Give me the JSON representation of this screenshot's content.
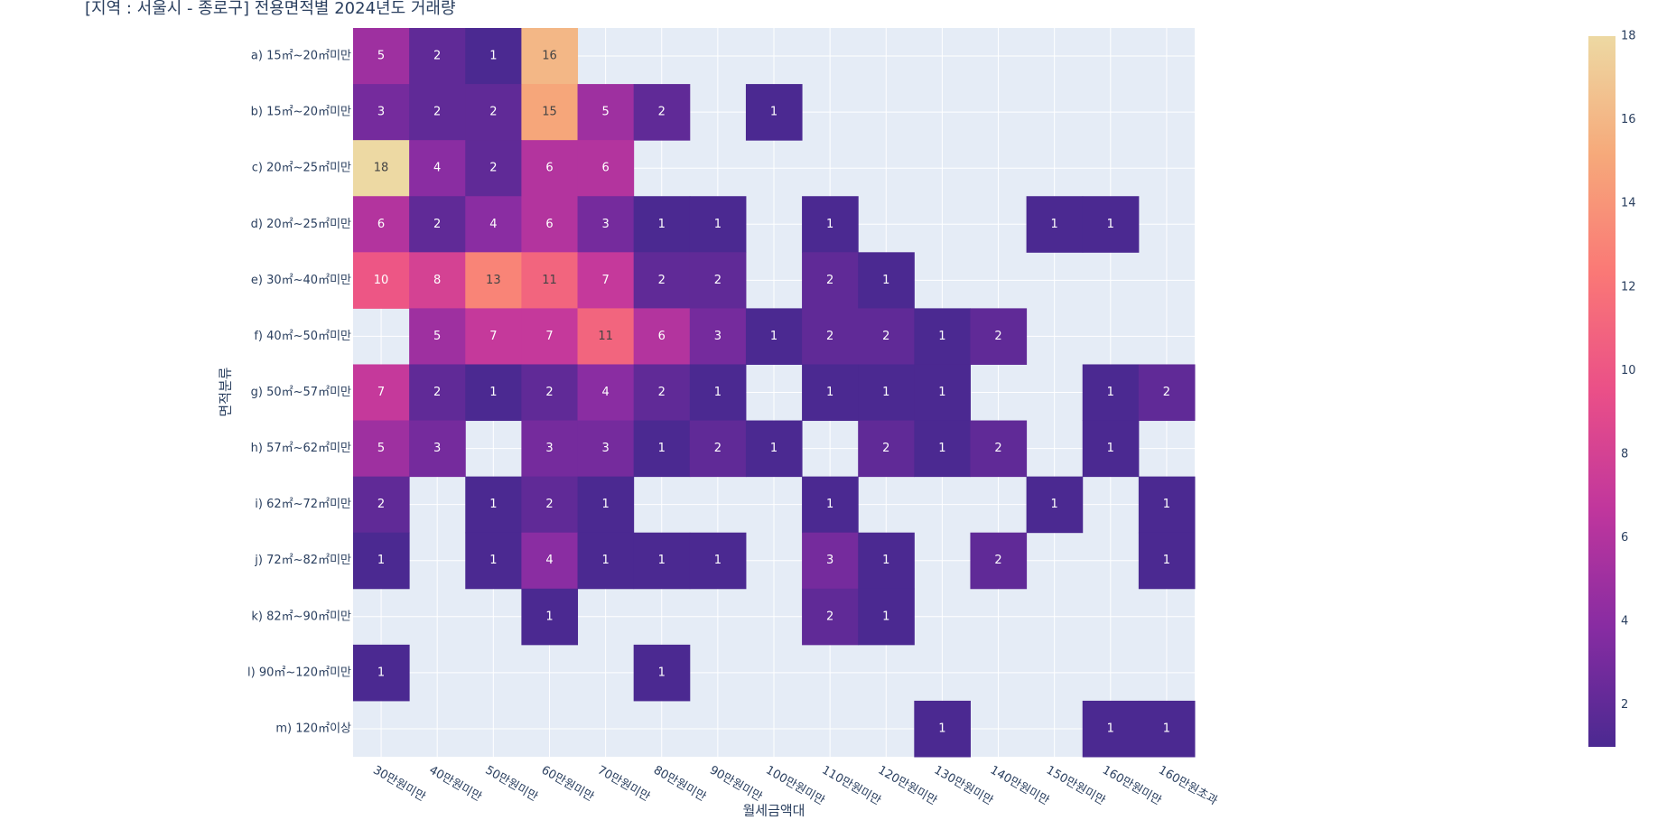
{
  "chart_data": {
    "type": "heatmap",
    "title": "[지역 : 서울시 - 종로구] 전용면적별 2024년도 거래량",
    "x_label": "월세금액대",
    "y_label": "면적분류",
    "x": [
      "30만원미만",
      "40만원미만",
      "50만원미만",
      "60만원미만",
      "70만원미만",
      "80만원미만",
      "90만원미만",
      "100만원미만",
      "110만원미만",
      "120만원미만",
      "130만원미만",
      "140만원미만",
      "150만원미만",
      "160만원미만",
      "160만원초과"
    ],
    "y": [
      "a) 15㎡~20㎡미만",
      "b) 15㎡~20㎡미만",
      "c) 20㎡~25㎡미만",
      "d) 20㎡~25㎡미만",
      "e) 30㎡~40㎡미만",
      "f) 40㎡~50㎡미만",
      "g) 50㎡~57㎡미만",
      "h) 57㎡~62㎡미만",
      "i) 62㎡~72㎡미만",
      "j) 72㎡~82㎡미만",
      "k) 82㎡~90㎡미만",
      "l) 90㎡~120㎡미만",
      "m) 120㎡이상"
    ],
    "z": [
      [
        5,
        2,
        1,
        16,
        null,
        null,
        null,
        null,
        null,
        null,
        null,
        null,
        null,
        null,
        null
      ],
      [
        3,
        2,
        2,
        15,
        5,
        2,
        null,
        1,
        null,
        null,
        null,
        null,
        null,
        null,
        null
      ],
      [
        18,
        4,
        2,
        6,
        6,
        null,
        null,
        null,
        null,
        null,
        null,
        null,
        null,
        null,
        null
      ],
      [
        6,
        2,
        4,
        6,
        3,
        1,
        1,
        null,
        1,
        null,
        null,
        null,
        1,
        1,
        null
      ],
      [
        10,
        8,
        13,
        11,
        7,
        2,
        2,
        null,
        2,
        1,
        null,
        null,
        null,
        null,
        null
      ],
      [
        null,
        5,
        7,
        7,
        11,
        6,
        3,
        1,
        2,
        2,
        1,
        2,
        null,
        null,
        null
      ],
      [
        7,
        2,
        1,
        2,
        4,
        2,
        1,
        null,
        1,
        1,
        1,
        null,
        null,
        1,
        2
      ],
      [
        5,
        3,
        null,
        3,
        3,
        1,
        2,
        1,
        null,
        2,
        1,
        2,
        null,
        1,
        null
      ],
      [
        2,
        null,
        1,
        2,
        1,
        null,
        null,
        null,
        1,
        null,
        null,
        null,
        1,
        null,
        1
      ],
      [
        1,
        null,
        1,
        4,
        1,
        1,
        1,
        null,
        3,
        1,
        null,
        2,
        null,
        null,
        1
      ],
      [
        null,
        null,
        null,
        1,
        null,
        null,
        null,
        null,
        2,
        1,
        null,
        null,
        null,
        null,
        null
      ],
      [
        1,
        null,
        null,
        null,
        null,
        1,
        null,
        null,
        null,
        null,
        null,
        null,
        null,
        null,
        null
      ],
      [
        null,
        null,
        null,
        null,
        null,
        null,
        null,
        null,
        null,
        null,
        1,
        null,
        null,
        1,
        1
      ]
    ],
    "colorscale": [
      "#4b2991",
      "#872ca2",
      "#c0369d",
      "#ea4f88",
      "#fa7876",
      "#f6a97a",
      "#edd9a3"
    ],
    "zlim": [
      1,
      18
    ],
    "colorbar_ticks": [
      2,
      4,
      6,
      8,
      10,
      12,
      14,
      16,
      18
    ],
    "grid": true
  }
}
